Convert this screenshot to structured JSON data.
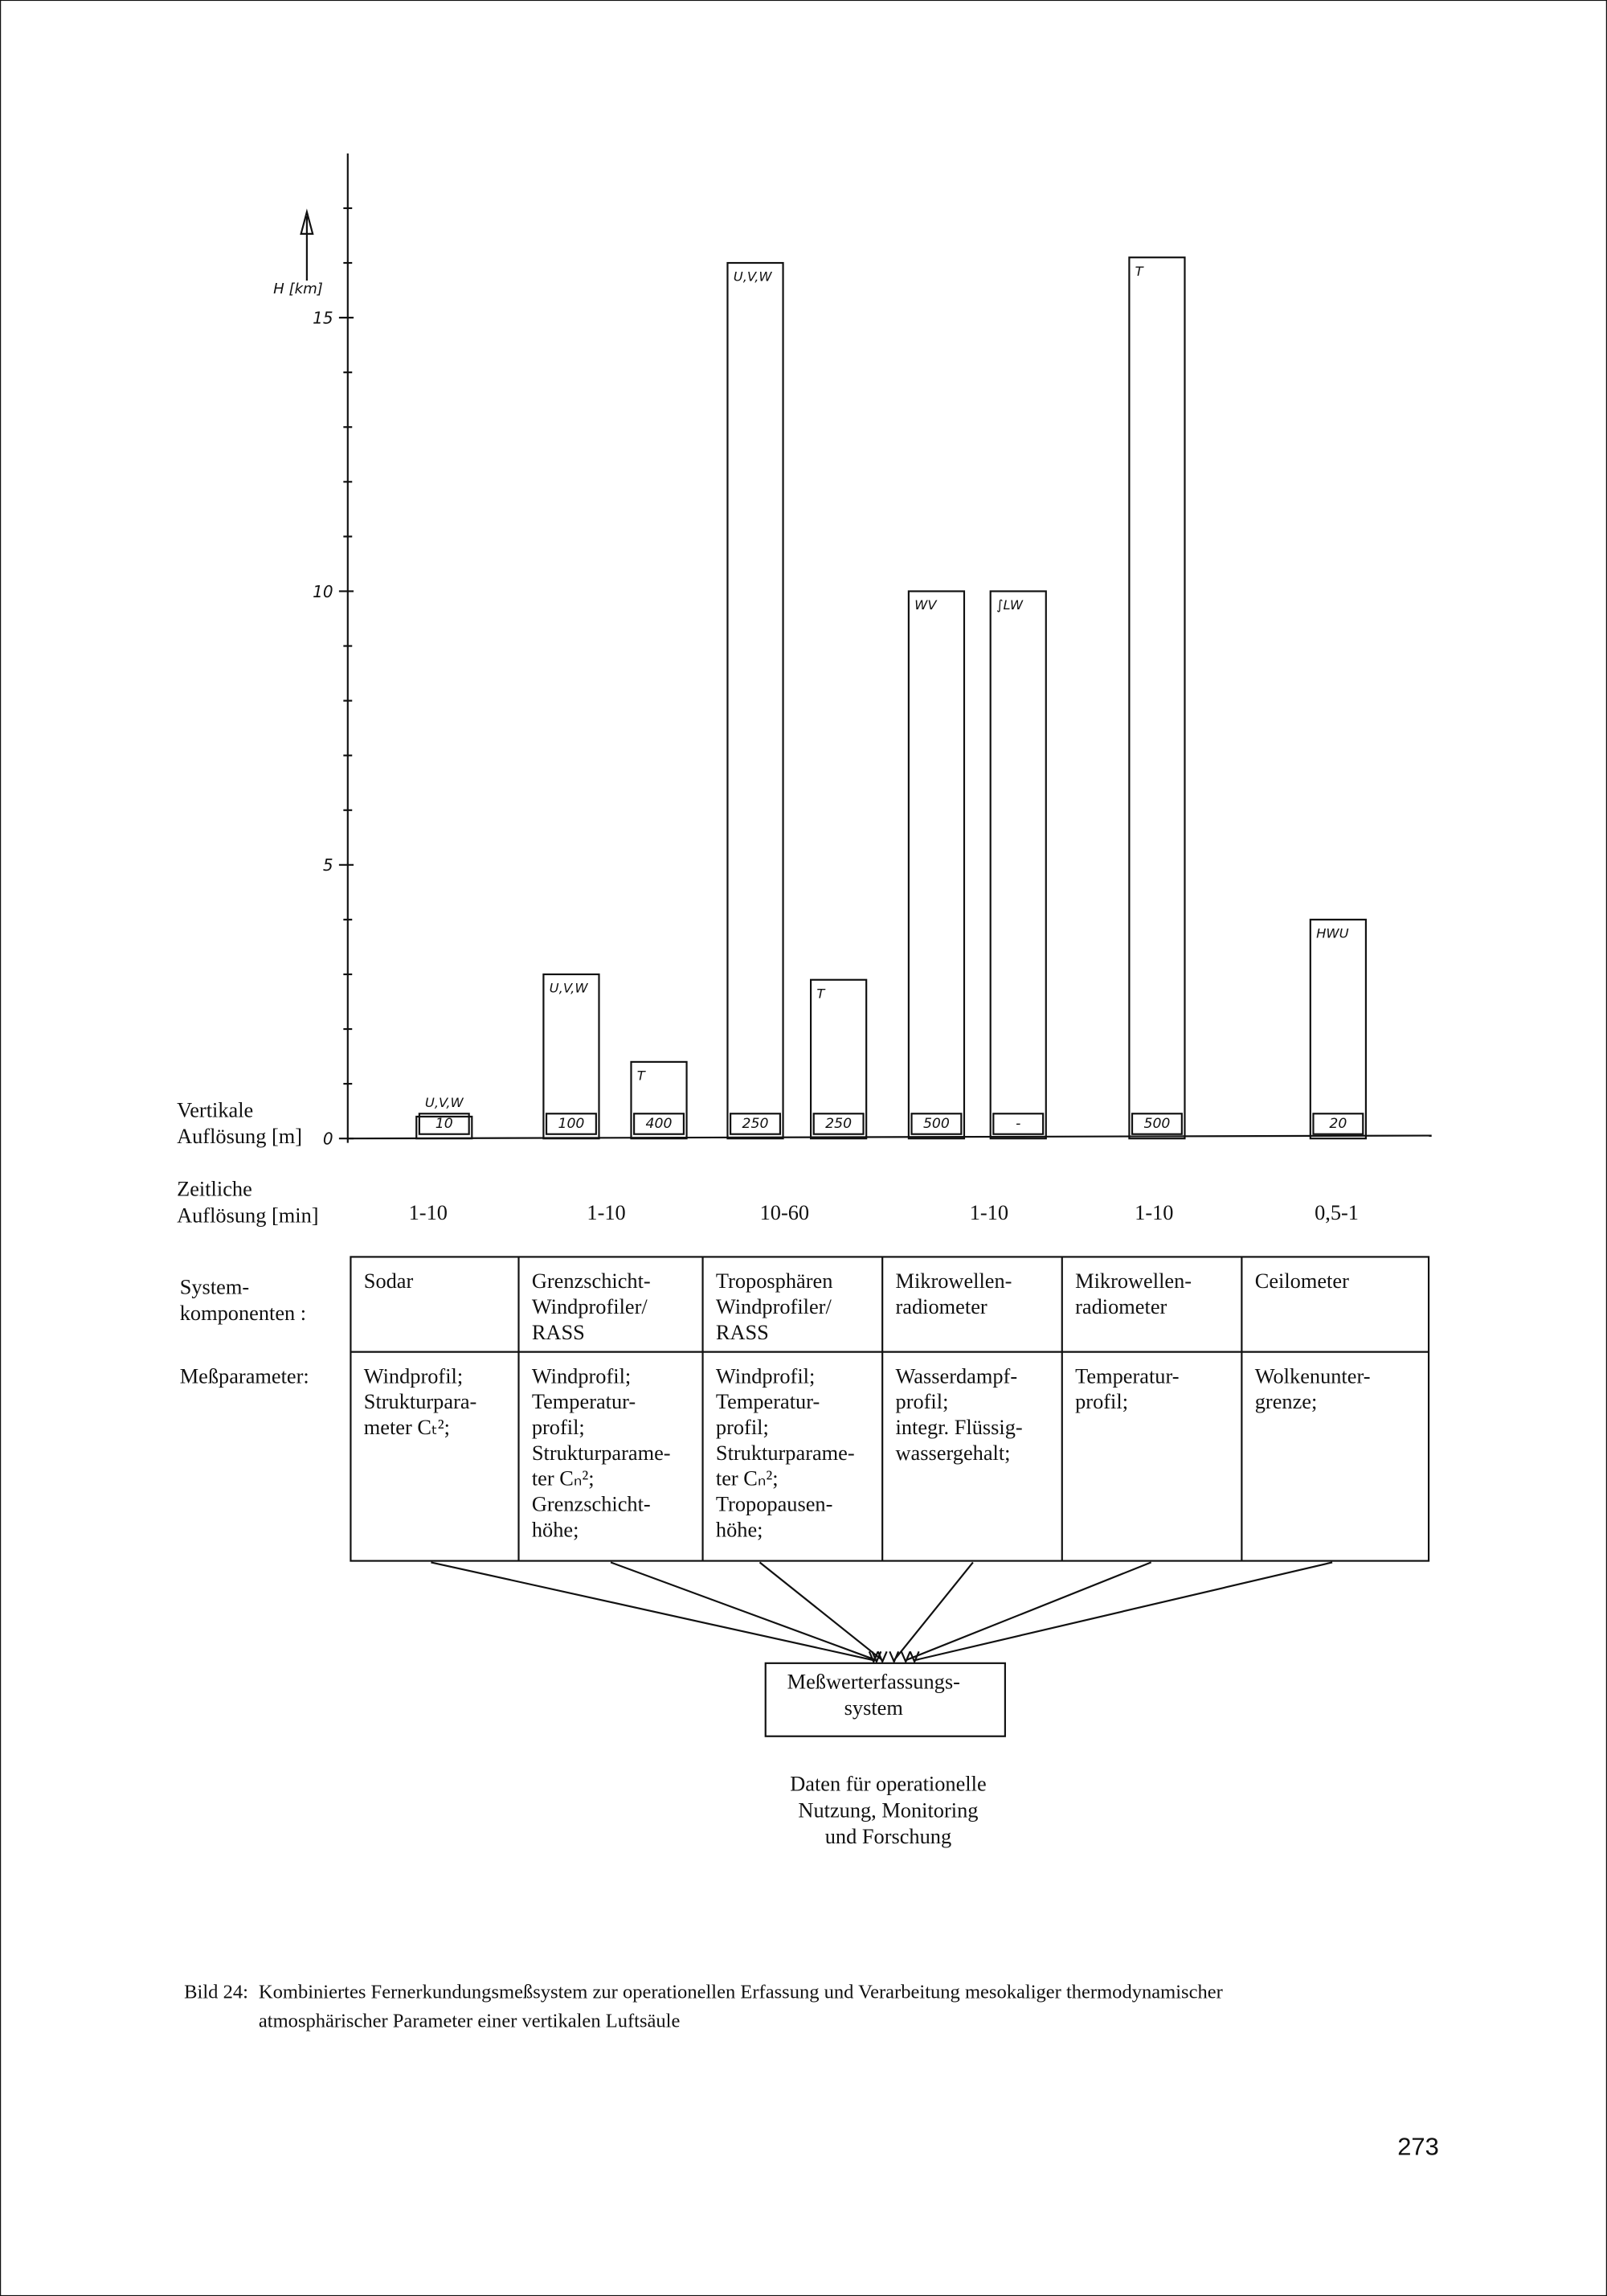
{
  "chart_data": {
    "type": "bar",
    "y_label": "H [km]",
    "categories": [
      "U,V,W",
      "U,V,W",
      "T",
      "U,V,W",
      "T",
      "WV",
      "∫LW",
      "T",
      "HWU"
    ],
    "values": [
      0.4,
      3,
      1.4,
      16,
      2.9,
      10,
      10,
      16.1,
      4
    ],
    "resolution_title": [
      "Vertikale",
      "Auflösung [m]"
    ],
    "resolution_labels": [
      "10",
      "100",
      "400",
      "250",
      "250",
      "500",
      "-",
      "500",
      "20"
    ],
    "ylim": [
      0,
      18
    ],
    "yticks": [
      0,
      5,
      10,
      15
    ],
    "minor_yticks": [
      1,
      2,
      3,
      4,
      6,
      7,
      8,
      9,
      11,
      12,
      13,
      14,
      16,
      17
    ],
    "color": "#ffffff"
  },
  "temporal_resolution": {
    "title": [
      "Zeitliche",
      "Auflösung [min]"
    ],
    "values": [
      "1-10",
      "1-10",
      "10-60",
      "1-10",
      "1-10",
      "0,5-1"
    ]
  },
  "table": {
    "row_labels": [
      [
        "System-",
        "komponenten :"
      ],
      [
        "Meßparameter:"
      ]
    ],
    "rows": [
      [
        [
          "Sodar"
        ],
        [
          "Grenzschicht-",
          "Windprofiler/",
          "RASS"
        ],
        [
          "Troposphären",
          "Windprofiler/",
          "RASS"
        ],
        [
          "Mikrowellen-",
          "radiometer"
        ],
        [
          "Mikrowellen-",
          "radiometer"
        ],
        [
          "Ceilometer"
        ]
      ],
      [
        [
          "Windprofil;",
          "Strukturpara-",
          "meter Cₜ²;"
        ],
        [
          "Windprofil;",
          "Temperatur-",
          "profil;",
          "Strukturparame-",
          "ter Cₙ²;",
          "Grenzschicht-",
          "höhe;"
        ],
        [
          "Windprofil;",
          "Temperatur-",
          "profil;",
          "Strukturparame-",
          "ter Cₙ²;",
          "Tropopausen-",
          "höhe;"
        ],
        [
          "Wasserdampf-",
          "profil;",
          "integr. Flüssig-",
          "wassergehalt;"
        ],
        [
          "Temperatur-",
          "profil;"
        ],
        [
          "Wolkenunter-",
          "grenze;"
        ]
      ]
    ]
  },
  "collector": [
    "Meßwerterfassungs-",
    "system"
  ],
  "output": [
    "Daten für operationelle",
    "Nutzung, Monitoring",
    "und Forschung"
  ],
  "caption": {
    "label": "Bild 24:",
    "lines": [
      "Kombiniertes Fernerkundungsmeßsystem zur operationellen Erfassung und Verarbeitung mesokaliger thermodynamischer",
      "atmosphärischer Parameter einer vertikalen Luftsäule"
    ]
  },
  "page_number": "273"
}
